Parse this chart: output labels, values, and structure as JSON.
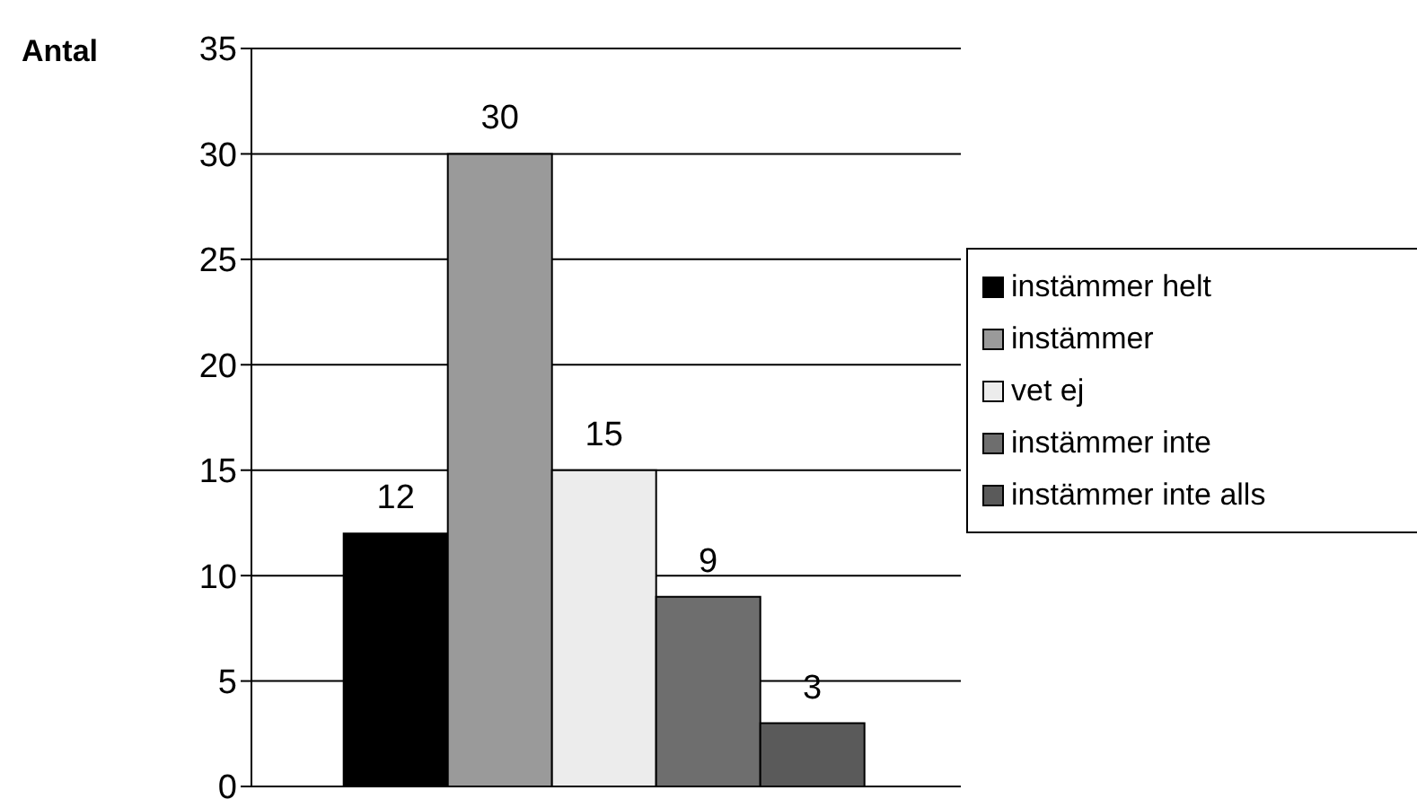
{
  "chart_data": {
    "type": "bar",
    "ylabel": "Antal",
    "categories": [
      null
    ],
    "series": [
      {
        "name": "instämmer helt",
        "color": "#000000",
        "values": [
          12
        ]
      },
      {
        "name": "instämmer",
        "color": "#9a9a9a",
        "values": [
          30
        ]
      },
      {
        "name": "vet ej",
        "color": "#ececec",
        "values": [
          15
        ]
      },
      {
        "name": "instämmer inte",
        "color": "#6e6e6e",
        "values": [
          9
        ]
      },
      {
        "name": "instämmer inte alls",
        "color": "#5a5a5a",
        "values": [
          3
        ]
      }
    ],
    "ylim": [
      0,
      35
    ],
    "yticks": [
      0,
      5,
      10,
      15,
      20,
      25,
      30,
      35
    ],
    "grid": "y",
    "legend": "right",
    "data_labels": true
  }
}
